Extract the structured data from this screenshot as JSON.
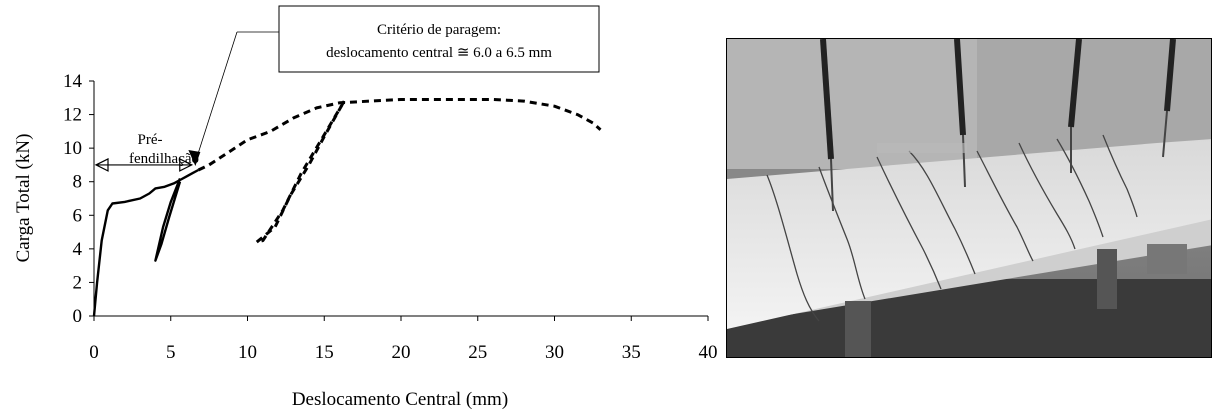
{
  "chart_data": {
    "type": "line",
    "xlabel": "Deslocamento Central (mm)",
    "ylabel": "Carga Total (kN)",
    "xlim": [
      0,
      40
    ],
    "ylim": [
      0,
      14
    ],
    "x_ticks": [
      0,
      5,
      10,
      15,
      20,
      25,
      30,
      35,
      40
    ],
    "y_ticks": [
      0,
      2,
      4,
      6,
      8,
      10,
      12,
      14
    ],
    "grid": false,
    "legend": "none",
    "series": [
      {
        "style": "solid",
        "points": [
          [
            0,
            0
          ],
          [
            0.2,
            2.0
          ],
          [
            0.5,
            4.5
          ],
          [
            0.9,
            6.3
          ],
          [
            1.2,
            6.7
          ],
          [
            2.0,
            6.8
          ],
          [
            3.0,
            7.0
          ],
          [
            3.6,
            7.3
          ],
          [
            4.0,
            7.6
          ],
          [
            4.6,
            7.7
          ],
          [
            5.2,
            7.9
          ],
          [
            5.6,
            8.1
          ],
          [
            6.0,
            8.3
          ],
          [
            6.4,
            8.5
          ],
          [
            6.8,
            8.7
          ]
        ]
      },
      {
        "style": "solid",
        "points": [
          [
            5.6,
            8.2
          ],
          [
            5.0,
            6.8
          ],
          [
            4.5,
            5.3
          ],
          [
            4.0,
            3.3
          ],
          [
            4.4,
            4.3
          ],
          [
            4.9,
            5.9
          ],
          [
            5.6,
            8.0
          ]
        ]
      },
      {
        "style": "dashed",
        "points": [
          [
            6.8,
            8.7
          ],
          [
            7.5,
            9.0
          ],
          [
            8.5,
            9.6
          ],
          [
            10.0,
            10.5
          ],
          [
            11.5,
            11.0
          ],
          [
            13.0,
            11.8
          ],
          [
            14.5,
            12.4
          ],
          [
            16.0,
            12.7
          ],
          [
            18.0,
            12.8
          ],
          [
            20.0,
            12.9
          ],
          [
            22.0,
            12.9
          ],
          [
            24.0,
            12.9
          ],
          [
            26.0,
            12.9
          ],
          [
            28.0,
            12.8
          ],
          [
            30.0,
            12.5
          ],
          [
            31.5,
            12.0
          ],
          [
            32.5,
            11.5
          ],
          [
            33.0,
            11.1
          ]
        ]
      },
      {
        "style": "dashed",
        "points": [
          [
            16.3,
            12.8
          ],
          [
            15.0,
            10.8
          ],
          [
            13.5,
            8.5
          ],
          [
            12.3,
            6.3
          ],
          [
            11.0,
            4.5
          ],
          [
            10.6,
            4.4
          ],
          [
            11.8,
            5.3
          ],
          [
            12.8,
            7.2
          ],
          [
            14.0,
            9.0
          ],
          [
            15.0,
            10.7
          ],
          [
            16.3,
            12.8
          ]
        ]
      }
    ],
    "annotations": [
      {
        "text_lines": [
          "Pré-",
          "fendilhação"
        ],
        "arrow": "double",
        "x_range": [
          0,
          6.5
        ],
        "y": 9
      },
      {
        "text_lines": [
          "Critério de paragem:",
          "deslocamento central ≅ 6.0 a 6.5 mm"
        ],
        "box": true,
        "points_to": [
          6.8,
          8.7
        ]
      }
    ]
  }
}
